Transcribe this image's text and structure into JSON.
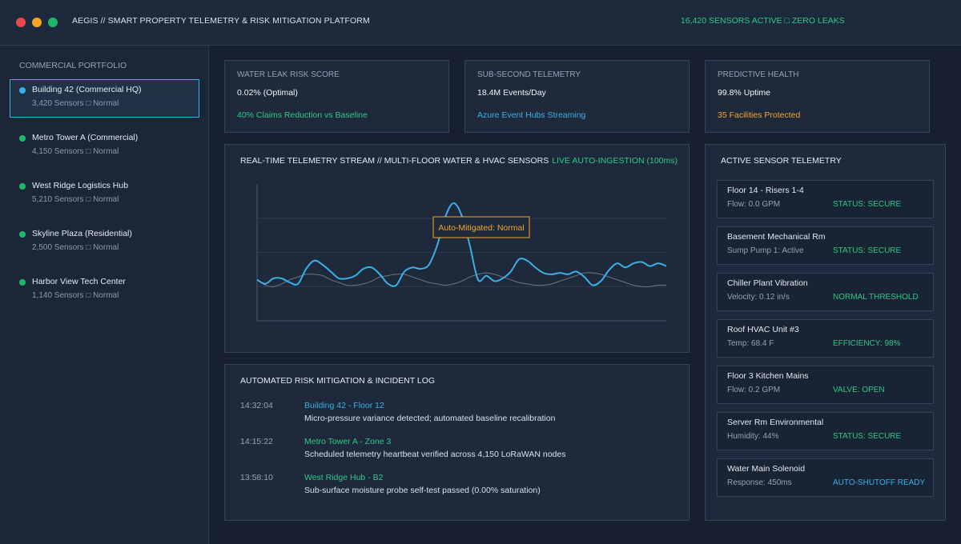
{
  "window": {
    "title": "AEGIS // SMART PROPERTY TELEMETRY & RISK MITIGATION PLATFORM",
    "status": "16,420 SENSORS ACTIVE □ ZERO LEAKS"
  },
  "sidebar": {
    "title": "COMMERCIAL PORTFOLIO",
    "items": [
      {
        "name": "Building 42 (Commercial HQ)",
        "sub": "3,420 Sensors □ Normal"
      },
      {
        "name": "Metro Tower A (Commercial)",
        "sub": "4,150 Sensors □ Normal"
      },
      {
        "name": "West Ridge Logistics Hub",
        "sub": "5,210 Sensors □ Normal"
      },
      {
        "name": "Skyline Plaza (Residential)",
        "sub": "2,500 Sensors □ Normal"
      },
      {
        "name": "Harbor View Tech Center",
        "sub": "1,140 Sensors □ Normal"
      }
    ]
  },
  "kpis": [
    {
      "label": "WATER LEAK RISK SCORE",
      "value": "0.02% (Optimal)",
      "note": "40% Claims Reduction vs Baseline",
      "note_color": "#2ec98a"
    },
    {
      "label": "SUB-SECOND TELEMETRY",
      "value": "18.4M Events/Day",
      "note": "Azure Event Hubs Streaming",
      "note_color": "#3ab0e8"
    },
    {
      "label": "PREDICTIVE HEALTH",
      "value": "99.8% Uptime",
      "note": "35 Facilities Protected",
      "note_color": "#f5a524"
    }
  ],
  "chart": {
    "title": "REAL-TIME TELEMETRY STREAM // MULTI-FLOOR WATER & HVAC SENSORS",
    "badge": "LIVE AUTO-INGESTION (100ms)",
    "annotation": "Auto-Mitigated: Normal"
  },
  "chart_data": {
    "type": "line",
    "title": "REAL-TIME TELEMETRY STREAM // MULTI-FLOOR WATER & HVAC SENSORS",
    "xlabel": "",
    "ylabel": "",
    "grid": true,
    "x": [
      0,
      10,
      20,
      30,
      40,
      50,
      60,
      70,
      80,
      90,
      100,
      110,
      120,
      130,
      140,
      150,
      160,
      170,
      180,
      190,
      200,
      210,
      220,
      230,
      240,
      250,
      260,
      270,
      280,
      290,
      300,
      310,
      320,
      330,
      340,
      350,
      360,
      370,
      380,
      390,
      400,
      410,
      420,
      430,
      440,
      450,
      460,
      470,
      480,
      490,
      500
    ],
    "ylim": [
      0,
      100
    ],
    "series": [
      {
        "values": [
          30,
          27,
          31,
          31,
          28,
          27,
          38,
          44,
          41,
          36,
          31,
          31,
          33,
          38,
          39,
          34,
          27,
          26,
          36,
          39,
          38,
          41,
          55,
          76,
          86,
          77,
          55,
          30,
          33,
          29,
          31,
          36,
          45,
          44,
          39,
          35,
          34,
          35,
          34,
          36,
          32,
          26,
          29,
          37,
          42,
          39,
          42,
          43,
          40,
          42,
          40
        ],
        "color": "#3ab0e8"
      },
      {
        "values": [
          30,
          26,
          25,
          27,
          30,
          32,
          34,
          34,
          33,
          30,
          28,
          26,
          26,
          27,
          29,
          32,
          33,
          34,
          34,
          32,
          30,
          28,
          27,
          26,
          27,
          29,
          32,
          34,
          35,
          34,
          32,
          30,
          28,
          27,
          26,
          26,
          27,
          29,
          31,
          33,
          35,
          35,
          34,
          32,
          30,
          28,
          26,
          25,
          25,
          26,
          26
        ],
        "color": "#6b7687"
      }
    ]
  },
  "log": {
    "title": "AUTOMATED RISK MITIGATION & INCIDENT LOG",
    "entries": [
      {
        "time": "14:32:04",
        "source": "Building 42 - Floor 12",
        "source_color": "#3ab0e8",
        "message": "Micro-pressure variance detected; automated baseline recalibration"
      },
      {
        "time": "14:15:22",
        "source": "Metro Tower A - Zone 3",
        "source_color": "#2ec98a",
        "message": "Scheduled telemetry heartbeat verified across 4,150 LoRaWAN nodes"
      },
      {
        "time": "13:58:10",
        "source": "West Ridge Hub - B2",
        "source_color": "#2ec98a",
        "message": "Sub-surface moisture probe self-test passed (0.00% saturation)"
      }
    ]
  },
  "sensors": {
    "title": "ACTIVE SENSOR TELEMETRY",
    "items": [
      {
        "name": "Floor 14 - Risers 1-4",
        "reading": "Flow: 0.0 GPM",
        "status": "STATUS: SECURE",
        "status_color": "#2ec98a"
      },
      {
        "name": "Basement Mechanical Rm",
        "reading": "Sump Pump 1: Active",
        "status": "STATUS: SECURE",
        "status_color": "#2ec98a"
      },
      {
        "name": "Chiller Plant Vibration",
        "reading": "Velocity: 0.12 in/s",
        "status": "NORMAL THRESHOLD",
        "status_color": "#2ec98a"
      },
      {
        "name": "Roof HVAC Unit #3",
        "reading": "Temp: 68.4 F",
        "status": "EFFICIENCY: 98%",
        "status_color": "#2ec98a"
      },
      {
        "name": "Floor 3 Kitchen Mains",
        "reading": "Flow: 0.2 GPM",
        "status": "VALVE: OPEN",
        "status_color": "#2ec98a"
      },
      {
        "name": "Server Rm Environmental",
        "reading": "Humidity: 44%",
        "status": "STATUS: SECURE",
        "status_color": "#2ec98a"
      },
      {
        "name": "Water Main Solenoid",
        "reading": "Response: 450ms",
        "status": "AUTO-SHUTOFF READY",
        "status_color": "#3ab0e8"
      }
    ]
  }
}
